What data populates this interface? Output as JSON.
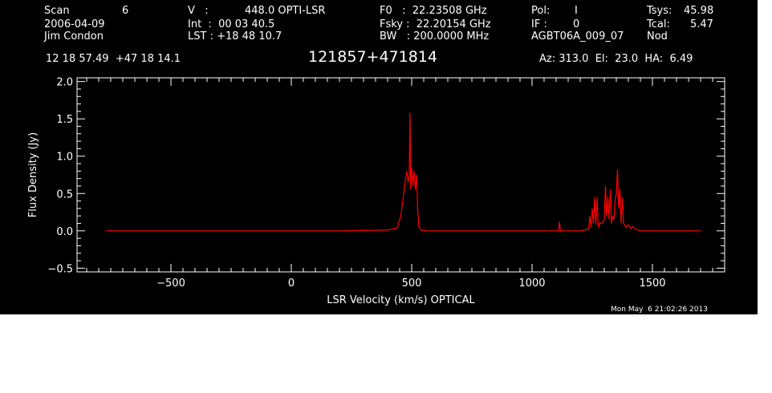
{
  "header": {
    "scan_label": "Scan",
    "scan_number": "6",
    "date": "2006-04-09",
    "observer": "Jim Condon",
    "v_label": "V   :",
    "v_value": "448.0 OPTI-LSR",
    "int_text": "Int  :  00 03 40.5",
    "lst_text": "LST : +18 48 10.7",
    "f0_text": "F0   :  22.23508 GHz",
    "fsky_text": "Fsky :  22.20154 GHz",
    "bw_text": "BW   : 200.0000 MHz",
    "pol_label": "Pol:",
    "pol_value": "I",
    "if_label": "IF :",
    "if_value": "0",
    "project": "AGBT06A_009_07",
    "tsys_label": "Tsys:",
    "tsys_value": "45.98",
    "tcal_label": "Tcal:",
    "tcal_value": "5.47",
    "mode": "Nod",
    "coords": "12 18 57.49  +47 18 14.1",
    "source": "121857+471814",
    "az_el_ha": "Az: 313.0  El:  23.0  HA:  6.49",
    "timestamp": "Mon May  6 21:02:26 2013"
  },
  "colors": {
    "background": "#000000",
    "axes": "#ffffff",
    "trace": "#ff0000"
  },
  "chart_data": {
    "type": "line",
    "title": "121857+471814",
    "xlabel": "LSR Velocity (km/s) OPTICAL",
    "ylabel": "Flux Density (Jy)",
    "xlim": [
      -890,
      1800
    ],
    "ylim": [
      -0.55,
      2.05
    ],
    "xticks": [
      -500,
      0,
      500,
      1000,
      1500
    ],
    "yticks": [
      -0.5,
      0.0,
      0.5,
      1.0,
      1.5,
      2.0
    ],
    "xtick_labels": [
      "−500",
      "0",
      "500",
      "1000",
      "1500"
    ],
    "ytick_labels": [
      "−0.5",
      "0.0",
      "0.5",
      "1.0",
      "1.5",
      "2.0"
    ],
    "grid": false,
    "series": [
      {
        "x": [
          -770,
          -600,
          -400,
          -200,
          0,
          200,
          400,
          440,
          455,
          465,
          470,
          475,
          480,
          485,
          490,
          493,
          496,
          500,
          505,
          510,
          515,
          520,
          525,
          530,
          540,
          560,
          600,
          800,
          1000,
          1110,
          1114,
          1118,
          1200,
          1235,
          1240,
          1245,
          1250,
          1255,
          1260,
          1265,
          1270,
          1275,
          1280,
          1290,
          1300,
          1305,
          1310,
          1315,
          1320,
          1325,
          1330,
          1335,
          1340,
          1345,
          1350,
          1355,
          1360,
          1365,
          1370,
          1375,
          1380,
          1390,
          1400,
          1410,
          1420,
          1430,
          1450,
          1500,
          1600,
          1700
        ],
        "y": [
          0.0,
          0.0,
          0.0,
          0.0,
          0.0,
          0.0,
          0.01,
          0.04,
          0.2,
          0.45,
          0.6,
          0.7,
          0.8,
          0.65,
          0.75,
          1.58,
          0.55,
          0.85,
          0.6,
          0.8,
          0.55,
          0.75,
          0.3,
          0.05,
          0.01,
          0.0,
          0.0,
          0.0,
          0.0,
          0.0,
          0.12,
          0.0,
          0.0,
          0.02,
          0.2,
          0.05,
          0.3,
          0.1,
          0.45,
          0.08,
          0.45,
          0.05,
          0.1,
          0.1,
          0.15,
          0.6,
          0.2,
          0.45,
          0.15,
          0.55,
          0.1,
          0.2,
          0.15,
          0.4,
          0.5,
          0.82,
          0.3,
          0.55,
          0.1,
          0.45,
          0.1,
          0.05,
          0.08,
          0.03,
          0.06,
          0.02,
          0.0,
          0.0,
          0.0,
          0.0
        ]
      }
    ]
  }
}
